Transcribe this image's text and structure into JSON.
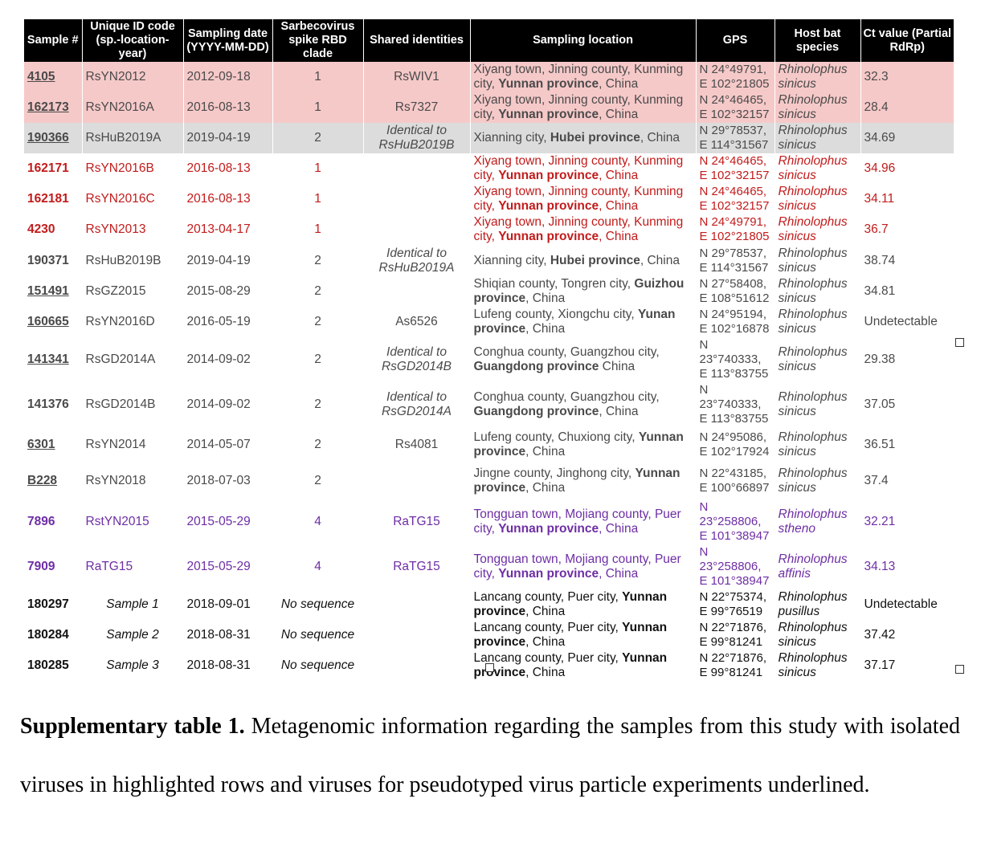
{
  "table": {
    "headers": [
      "Sample #",
      "Unique ID code (sp.-location-year)",
      "Sampling date (YYYY-MM-DD)",
      "Sarbecovirus spike RBD clade",
      "Shared identities",
      "Sampling location",
      "GPS",
      "Host bat species",
      "Ct value (Partial RdRp)"
    ],
    "rows": [
      {
        "style": "hl-red",
        "underline": true,
        "sample": "4105",
        "uid": "RsYN2012",
        "date": "2012-09-18",
        "clade": "1",
        "shared": "RsWIV1",
        "shared_italic": false,
        "loc_pre": "Xiyang town, Jinning county, Kunming city, ",
        "loc_bold": "Yunnan province",
        "loc_post": ", China",
        "gps1": "N 24°49791,",
        "gps2": "E 102°21805",
        "host1": "Rhinolophus",
        "host2": "sinicus",
        "ct": "32.3"
      },
      {
        "style": "hl-red",
        "underline": true,
        "sample": "162173",
        "uid": "RsYN2016A",
        "date": "2016-08-13",
        "clade": "1",
        "shared": "Rs7327",
        "shared_italic": false,
        "loc_pre": "Xiyang town, Jinning county, Kunming city, ",
        "loc_bold": "Yunnan province",
        "loc_post": ", China",
        "gps1": "N 24°46465,",
        "gps2": "E 102°32157",
        "host1": "Rhinolophus",
        "host2": "sinicus",
        "ct": "28.4"
      },
      {
        "style": "hl-grey",
        "underline": true,
        "sample": "190366",
        "uid": "RsHuB2019A",
        "date": "2019-04-19",
        "clade": "2",
        "shared": "Identical to RsHuB2019B",
        "shared_italic": true,
        "loc_pre": "Xianning city, ",
        "loc_bold": "Hubei province",
        "loc_post": ", China",
        "gps1": "N 29°78537,",
        "gps2": "E 114°31567",
        "host1": "Rhinolophus",
        "host2": "sinicus",
        "ct": "34.69"
      },
      {
        "style": "red",
        "underline": false,
        "sample": "162171",
        "uid": "RsYN2016B",
        "date": "2016-08-13",
        "clade": "1",
        "shared": "",
        "shared_italic": false,
        "loc_pre": "Xiyang town, Jinning county, Kunming city, ",
        "loc_bold": "Yunnan province",
        "loc_post": ", China",
        "gps1": "N 24°46465,",
        "gps2": "E 102°32157",
        "host1": "Rhinolophus",
        "host2": "sinicus",
        "ct": "34.96"
      },
      {
        "style": "red",
        "underline": false,
        "sample": "162181",
        "uid": "RsYN2016C",
        "date": "2016-08-13",
        "clade": "1",
        "shared": "",
        "shared_italic": false,
        "loc_pre": "Xiyang town, Jinning county, Kunming city, ",
        "loc_bold": "Yunnan province",
        "loc_post": ", China",
        "gps1": "N 24°46465,",
        "gps2": "E 102°32157",
        "host1": "Rhinolophus",
        "host2": "sinicus",
        "ct": "34.11"
      },
      {
        "style": "red",
        "underline": false,
        "sample": "4230",
        "uid": "RsYN2013",
        "date": "2013-04-17",
        "clade": "1",
        "shared": "",
        "shared_italic": false,
        "loc_pre": "Xiyang town, Jinning county, Kunming city, ",
        "loc_bold": "Yunnan province",
        "loc_post": ", China",
        "gps1": "N 24°49791,",
        "gps2": "E 102°21805",
        "host1": "Rhinolophus",
        "host2": "sinicus",
        "ct": "36.7"
      },
      {
        "style": "",
        "underline": false,
        "sample": "190371",
        "uid": "RsHuB2019B",
        "date": "2019-04-19",
        "clade": "2",
        "shared": "Identical to RsHuB2019A",
        "shared_italic": true,
        "loc_pre": "Xianning city, ",
        "loc_bold": "Hubei province",
        "loc_post": ", China",
        "gps1": "N 29°78537,",
        "gps2": "E 114°31567",
        "host1": "Rhinolophus",
        "host2": "sinicus",
        "ct": "38.74"
      },
      {
        "style": "",
        "underline": true,
        "sample": "151491",
        "uid": "RsGZ2015",
        "date": "2015-08-29",
        "clade": "2",
        "shared": "",
        "shared_italic": false,
        "loc_pre": "Shiqian county, Tongren city, ",
        "loc_bold": "Guizhou province",
        "loc_post": ", China",
        "gps1": "N 27°58408,",
        "gps2": "E 108°51612",
        "host1": "Rhinolophus",
        "host2": "sinicus",
        "ct": "34.81"
      },
      {
        "style": "",
        "underline": true,
        "sample": "160665",
        "uid": "RsYN2016D",
        "date": "2016-05-19",
        "clade": "2",
        "shared": "As6526",
        "shared_italic": false,
        "loc_pre": "Lufeng county, Xiongchu city, ",
        "loc_bold": "Yunan province",
        "loc_post": ", China",
        "gps1": "N 24°95194,",
        "gps2": "E 102°16878",
        "host1": "Rhinolophus",
        "host2": "sinicus",
        "ct": "Undetectable"
      },
      {
        "style": "",
        "underline": true,
        "sample": "141341",
        "uid": "RsGD2014A",
        "date": "2014-09-02",
        "clade": "2",
        "shared": "Identical to RsGD2014B",
        "shared_italic": true,
        "loc_pre": "Conghua county, Guangzhou city, ",
        "loc_bold": "Guangdong province",
        "loc_post": " China",
        "gps1": "N 23°740333,",
        "gps2": "E 113°83755",
        "host1": "Rhinolophus",
        "host2": "sinicus",
        "ct": "29.38"
      },
      {
        "style": "",
        "underline": false,
        "sample": "141376",
        "uid": "RsGD2014B",
        "date": "2014-09-02",
        "clade": "2",
        "shared": "Identical to RsGD2014A",
        "shared_italic": true,
        "loc_pre": "Conghua county, Guangzhou city, ",
        "loc_bold": "Guangdong province",
        "loc_post": ", China",
        "gps1": "N 23°740333,",
        "gps2": "E 113°83755",
        "host1": "Rhinolophus",
        "host2": "sinicus",
        "ct": "37.05"
      },
      {
        "style": "",
        "underline": true,
        "sample": "6301",
        "uid": "RsYN2014",
        "date": "2014-05-07",
        "clade": "2",
        "shared": "Rs4081",
        "shared_italic": false,
        "loc_pre": "Lufeng county, Chuxiong city, ",
        "loc_bold": "Yunnan province",
        "loc_post": ", China",
        "gps1": "N 24°95086,",
        "gps2": "E 102°17924",
        "host1": "Rhinolophus",
        "host2": "sinicus",
        "ct": "36.51"
      },
      {
        "style": "",
        "underline": true,
        "sample": "B228",
        "uid": "RsYN2018",
        "date": "2018-07-03",
        "clade": "2",
        "shared": "",
        "shared_italic": false,
        "loc_pre": "Jingne county, Jinghong city, ",
        "loc_bold": "Yunnan province",
        "loc_post": ", China",
        "gps1": "N 22°43185,",
        "gps2": "E 100°66897",
        "host1": "Rhinolophus",
        "host2": "sinicus",
        "ct": "37.4"
      },
      {
        "style": "purple",
        "underline": false,
        "sample": "7896",
        "uid": "RstYN2015",
        "date": "2015-05-29",
        "clade": "4",
        "shared": "RaTG15",
        "shared_italic": false,
        "loc_pre": "Tongguan town, Mojiang county, Puer city, ",
        "loc_bold": "Yunnan province",
        "loc_post": ", China",
        "gps1": "N 23°258806,",
        "gps2": "E 101°38947",
        "host1": "Rhinolophus",
        "host2": "stheno",
        "ct": "32.21"
      },
      {
        "style": "purple",
        "underline": false,
        "sample": "7909",
        "uid": "RaTG15",
        "date": "2015-05-29",
        "clade": "4",
        "shared": "RaTG15",
        "shared_italic": false,
        "loc_pre": "Tongguan town, Mojiang county, Puer city, ",
        "loc_bold": "Yunnan province",
        "loc_post": ", China",
        "gps1": "N 23°258806,",
        "gps2": "E 101°38947",
        "host1": "Rhinolophus",
        "host2": "affinis",
        "ct": "34.13"
      },
      {
        "style": "black",
        "underline": false,
        "sample": "180297",
        "uid": "Sample 1",
        "date": "2018-09-01",
        "clade": "No sequence",
        "shared": "",
        "shared_italic": false,
        "loc_pre": "Lancang county, Puer city, ",
        "loc_bold": "Yunnan province",
        "loc_post": ", China",
        "gps1": "N 22°75374,",
        "gps2": "E 99°76519",
        "host1": "Rhinolophus",
        "host2": "pusillus",
        "ct": "Undetectable"
      },
      {
        "style": "black",
        "underline": false,
        "sample": "180284",
        "uid": "Sample 2",
        "date": "2018-08-31",
        "clade": "No sequence",
        "shared": "",
        "shared_italic": false,
        "loc_pre": "Lancang county, Puer city, ",
        "loc_bold": "Yunnan province",
        "loc_post": ", China",
        "gps1": "N 22°71876,",
        "gps2": "E 99°81241",
        "host1": "Rhinolophus",
        "host2": "sinicus",
        "ct": "37.42"
      },
      {
        "style": "black",
        "underline": false,
        "sample": "180285",
        "uid": "Sample 3",
        "date": "2018-08-31",
        "clade": "No sequence",
        "shared": "",
        "shared_italic": false,
        "loc_pre": "Lancang county, Puer city, ",
        "loc_bold": "Yunnan province",
        "loc_post": ", China",
        "gps1": "N 22°71876,",
        "gps2": "E 99°81241",
        "host1": "Rhinolophus",
        "host2": "sinicus",
        "ct": "37.17"
      }
    ]
  },
  "caption": {
    "label": "Supplementary table 1.",
    "text": " Metagenomic information regarding the samples from this study with isolated viruses in highlighted rows and viruses for pseudotyped virus particle experiments underlined."
  },
  "colors": {
    "header_bg": "#000000",
    "highlight_red": "#f6c9c9",
    "highlight_grey": "#dcdcdc",
    "text_red": "#c21b1b",
    "text_purple": "#6e2ea5"
  }
}
